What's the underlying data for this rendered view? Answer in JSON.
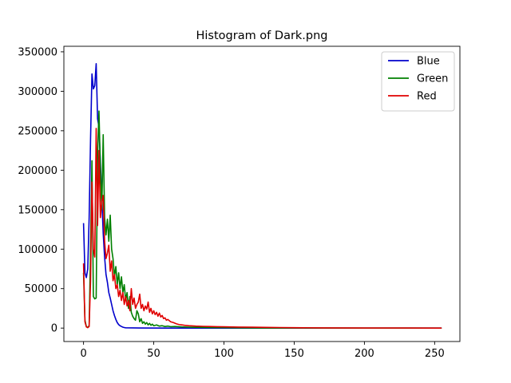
{
  "chart_data": {
    "type": "line",
    "title": "Histogram of Dark.png",
    "xlabel": "",
    "ylabel": "",
    "xlim": [
      -14,
      268
    ],
    "ylim": [
      -17000,
      357000
    ],
    "x_ticks": [
      0,
      50,
      100,
      150,
      200,
      250
    ],
    "y_ticks": [
      0,
      50000,
      100000,
      150000,
      200000,
      250000,
      300000,
      350000
    ],
    "legend_position": "top-right",
    "grid": false,
    "series": [
      {
        "name": "Blue",
        "color": "#0000cc",
        "points": [
          [
            0,
            133000
          ],
          [
            1,
            70000
          ],
          [
            2,
            64000
          ],
          [
            3,
            75000
          ],
          [
            4,
            140000
          ],
          [
            5,
            240000
          ],
          [
            6,
            322000
          ],
          [
            7,
            303000
          ],
          [
            8,
            307000
          ],
          [
            9,
            335000
          ],
          [
            10,
            265000
          ],
          [
            11,
            255000
          ],
          [
            12,
            210000
          ],
          [
            13,
            165000
          ],
          [
            14,
            120000
          ],
          [
            15,
            90000
          ],
          [
            16,
            68000
          ],
          [
            17,
            58000
          ],
          [
            18,
            45000
          ],
          [
            19,
            38000
          ],
          [
            20,
            30000
          ],
          [
            21,
            22000
          ],
          [
            22,
            16000
          ],
          [
            23,
            11000
          ],
          [
            24,
            7000
          ],
          [
            25,
            4500
          ],
          [
            26,
            3000
          ],
          [
            27,
            2000
          ],
          [
            28,
            1200
          ],
          [
            29,
            700
          ],
          [
            30,
            400
          ],
          [
            35,
            200
          ],
          [
            40,
            100
          ],
          [
            60,
            0
          ],
          [
            100,
            0
          ],
          [
            150,
            0
          ],
          [
            200,
            0
          ],
          [
            255,
            0
          ]
        ]
      },
      {
        "name": "Green",
        "color": "#008000",
        "points": [
          [
            0,
            70000
          ],
          [
            1,
            10000
          ],
          [
            2,
            2000
          ],
          [
            3,
            800
          ],
          [
            4,
            3000
          ],
          [
            5,
            100000
          ],
          [
            6,
            212000
          ],
          [
            7,
            40000
          ],
          [
            8,
            37000
          ],
          [
            9,
            38000
          ],
          [
            10,
            220000
          ],
          [
            11,
            275000
          ],
          [
            12,
            200000
          ],
          [
            13,
            150000
          ],
          [
            14,
            245000
          ],
          [
            15,
            140000
          ],
          [
            16,
            118000
          ],
          [
            17,
            138000
          ],
          [
            18,
            110000
          ],
          [
            19,
            143000
          ],
          [
            20,
            100000
          ],
          [
            21,
            88000
          ],
          [
            22,
            65000
          ],
          [
            23,
            78000
          ],
          [
            24,
            55000
          ],
          [
            25,
            70000
          ],
          [
            26,
            50000
          ],
          [
            27,
            65000
          ],
          [
            28,
            45000
          ],
          [
            29,
            55000
          ],
          [
            30,
            35000
          ],
          [
            31,
            45000
          ],
          [
            32,
            25000
          ],
          [
            33,
            40000
          ],
          [
            34,
            20000
          ],
          [
            35,
            15000
          ],
          [
            36,
            12000
          ],
          [
            37,
            10000
          ],
          [
            38,
            22000
          ],
          [
            39,
            18000
          ],
          [
            40,
            8000
          ],
          [
            41,
            12000
          ],
          [
            42,
            6000
          ],
          [
            43,
            8000
          ],
          [
            44,
            5000
          ],
          [
            45,
            7000
          ],
          [
            46,
            4000
          ],
          [
            47,
            6000
          ],
          [
            48,
            3500
          ],
          [
            49,
            5000
          ],
          [
            50,
            3000
          ],
          [
            52,
            4000
          ],
          [
            54,
            2500
          ],
          [
            56,
            3000
          ],
          [
            58,
            2000
          ],
          [
            60,
            2500
          ],
          [
            62,
            1800
          ],
          [
            65,
            2000
          ],
          [
            70,
            1500
          ],
          [
            75,
            1200
          ],
          [
            80,
            1000
          ],
          [
            90,
            800
          ],
          [
            100,
            600
          ],
          [
            110,
            400
          ],
          [
            120,
            250
          ],
          [
            130,
            150
          ],
          [
            150,
            80
          ],
          [
            200,
            20
          ],
          [
            255,
            0
          ]
        ]
      },
      {
        "name": "Red",
        "color": "#e00000",
        "points": [
          [
            0,
            82000
          ],
          [
            1,
            8000
          ],
          [
            2,
            1500
          ],
          [
            3,
            500
          ],
          [
            4,
            2000
          ],
          [
            5,
            60000
          ],
          [
            6,
            185000
          ],
          [
            7,
            100000
          ],
          [
            8,
            90000
          ],
          [
            9,
            253000
          ],
          [
            10,
            130000
          ],
          [
            11,
            225000
          ],
          [
            12,
            140000
          ],
          [
            13,
            160000
          ],
          [
            14,
            168000
          ],
          [
            15,
            110000
          ],
          [
            16,
            88000
          ],
          [
            17,
            95000
          ],
          [
            18,
            105000
          ],
          [
            19,
            72000
          ],
          [
            20,
            85000
          ],
          [
            21,
            60000
          ],
          [
            22,
            68000
          ],
          [
            23,
            50000
          ],
          [
            24,
            55000
          ],
          [
            25,
            40000
          ],
          [
            26,
            48000
          ],
          [
            27,
            35000
          ],
          [
            28,
            45000
          ],
          [
            29,
            30000
          ],
          [
            30,
            40000
          ],
          [
            31,
            28000
          ],
          [
            32,
            35000
          ],
          [
            33,
            22000
          ],
          [
            34,
            50000
          ],
          [
            35,
            30000
          ],
          [
            36,
            38000
          ],
          [
            37,
            25000
          ],
          [
            38,
            30000
          ],
          [
            39,
            33000
          ],
          [
            40,
            43000
          ],
          [
            41,
            25000
          ],
          [
            42,
            30000
          ],
          [
            43,
            22000
          ],
          [
            44,
            28000
          ],
          [
            45,
            24000
          ],
          [
            46,
            33000
          ],
          [
            47,
            20000
          ],
          [
            48,
            25000
          ],
          [
            49,
            18000
          ],
          [
            50,
            22000
          ],
          [
            51,
            17000
          ],
          [
            52,
            20000
          ],
          [
            53,
            15000
          ],
          [
            54,
            19000
          ],
          [
            55,
            14000
          ],
          [
            56,
            16000
          ],
          [
            57,
            12000
          ],
          [
            58,
            13000
          ],
          [
            59,
            10000
          ],
          [
            60,
            11000
          ],
          [
            62,
            8000
          ],
          [
            64,
            7000
          ],
          [
            66,
            5500
          ],
          [
            68,
            4500
          ],
          [
            70,
            4000
          ],
          [
            72,
            3500
          ],
          [
            75,
            3000
          ],
          [
            80,
            2500
          ],
          [
            85,
            2200
          ],
          [
            90,
            2000
          ],
          [
            95,
            1800
          ],
          [
            100,
            1600
          ],
          [
            110,
            1300
          ],
          [
            120,
            1100
          ],
          [
            130,
            900
          ],
          [
            140,
            700
          ],
          [
            150,
            500
          ],
          [
            170,
            300
          ],
          [
            200,
            150
          ],
          [
            230,
            80
          ],
          [
            255,
            0
          ]
        ]
      }
    ]
  }
}
